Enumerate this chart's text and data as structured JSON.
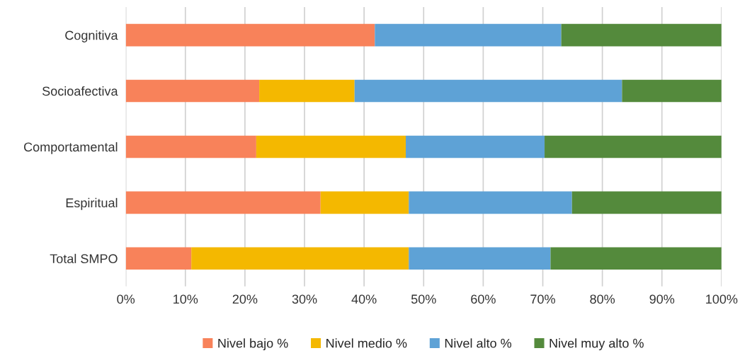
{
  "chart_data": {
    "type": "bar",
    "orientation": "horizontal",
    "stacked": true,
    "categories": [
      "Cognitiva",
      "Socioafectiva",
      "Comportamental",
      "Espiritual",
      "Total SMPO"
    ],
    "series": [
      {
        "name": "Nivel bajo %",
        "color": "#f8825a",
        "values": [
          41.8,
          22.4,
          21.9,
          32.7,
          11.0
        ]
      },
      {
        "name": "Nivel medio %",
        "color": "#f4b800",
        "values": [
          null,
          16.0,
          25.1,
          14.8,
          36.5
        ]
      },
      {
        "name": "Nivel alto %",
        "color": "#5ea2d6",
        "values": [
          31.3,
          44.9,
          23.3,
          27.4,
          23.8
        ]
      },
      {
        "name": "Nivel muy alto %",
        "color": "#548a3c",
        "values": [
          26.9,
          16.7,
          29.7,
          25.1,
          28.7
        ]
      }
    ],
    "xlim": [
      0,
      100
    ],
    "xticks": [
      {
        "value": 0,
        "label": "0%"
      },
      {
        "value": 10,
        "label": "10%"
      },
      {
        "value": 20,
        "label": "20%"
      },
      {
        "value": 30,
        "label": "30%"
      },
      {
        "value": 40,
        "label": "40%"
      },
      {
        "value": 50,
        "label": "50%"
      },
      {
        "value": 60,
        "label": "60%"
      },
      {
        "value": 70,
        "label": "70%"
      },
      {
        "value": 80,
        "label": "80%"
      },
      {
        "value": 90,
        "label": "90%"
      },
      {
        "value": 100,
        "label": "100%"
      }
    ],
    "grid": "x",
    "legend": "bottom"
  }
}
